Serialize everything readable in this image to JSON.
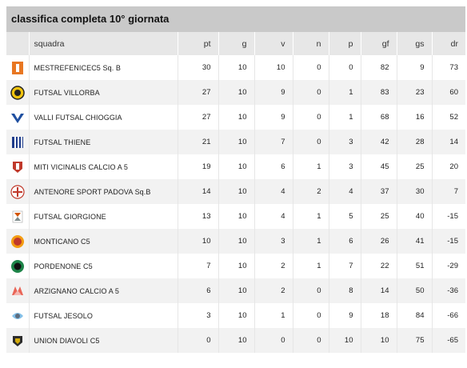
{
  "page": {
    "title": "classifica completa 10° giornata"
  },
  "columns": [
    "squadra",
    "pt",
    "g",
    "v",
    "n",
    "p",
    "gf",
    "gs",
    "dr"
  ],
  "rows": [
    {
      "team": "MESTREFENICEC5 Sq. B",
      "logo": "mestre-fenice-logo",
      "pt": "30",
      "g": "10",
      "v": "10",
      "n": "0",
      "p": "0",
      "gf": "82",
      "gs": "9",
      "dr": "73"
    },
    {
      "team": "FUTSAL VILLORBA",
      "logo": "futsal-villorba-logo",
      "pt": "27",
      "g": "10",
      "v": "9",
      "n": "0",
      "p": "1",
      "gf": "83",
      "gs": "23",
      "dr": "60"
    },
    {
      "team": "VALLI FUTSAL CHIOGGIA",
      "logo": "valli-futsal-chioggia-logo",
      "pt": "27",
      "g": "10",
      "v": "9",
      "n": "0",
      "p": "1",
      "gf": "68",
      "gs": "16",
      "dr": "52"
    },
    {
      "team": "FUTSAL THIENE",
      "logo": "futsal-thiene-logo",
      "pt": "21",
      "g": "10",
      "v": "7",
      "n": "0",
      "p": "3",
      "gf": "42",
      "gs": "28",
      "dr": "14"
    },
    {
      "team": "MITI VICINALIS CALCIO A 5",
      "logo": "miti-vicinalis-logo",
      "pt": "19",
      "g": "10",
      "v": "6",
      "n": "1",
      "p": "3",
      "gf": "45",
      "gs": "25",
      "dr": "20"
    },
    {
      "team": "ANTENORE SPORT PADOVA Sq.B",
      "logo": "antenore-sport-padova-logo",
      "pt": "14",
      "g": "10",
      "v": "4",
      "n": "2",
      "p": "4",
      "gf": "37",
      "gs": "30",
      "dr": "7"
    },
    {
      "team": "FUTSAL GIORGIONE",
      "logo": "futsal-giorgione-logo",
      "pt": "13",
      "g": "10",
      "v": "4",
      "n": "1",
      "p": "5",
      "gf": "25",
      "gs": "40",
      "dr": "-15"
    },
    {
      "team": "MONTICANO C5",
      "logo": "monticano-c5-logo",
      "pt": "10",
      "g": "10",
      "v": "3",
      "n": "1",
      "p": "6",
      "gf": "26",
      "gs": "41",
      "dr": "-15"
    },
    {
      "team": "PORDENONE C5",
      "logo": "pordenone-c5-logo",
      "pt": "7",
      "g": "10",
      "v": "2",
      "n": "1",
      "p": "7",
      "gf": "22",
      "gs": "51",
      "dr": "-29"
    },
    {
      "team": "ARZIGNANO CALCIO A 5",
      "logo": "arzignano-calcio-logo",
      "pt": "6",
      "g": "10",
      "v": "2",
      "n": "0",
      "p": "8",
      "gf": "14",
      "gs": "50",
      "dr": "-36"
    },
    {
      "team": "FUTSAL JESOLO",
      "logo": "futsal-jesolo-logo",
      "pt": "3",
      "g": "10",
      "v": "1",
      "n": "0",
      "p": "9",
      "gf": "18",
      "gs": "84",
      "dr": "-66"
    },
    {
      "team": "UNION DIAVOLI C5",
      "logo": "union-diavoli-logo",
      "pt": "0",
      "g": "10",
      "v": "0",
      "n": "0",
      "p": "10",
      "gf": "10",
      "gs": "75",
      "dr": "-65"
    }
  ]
}
